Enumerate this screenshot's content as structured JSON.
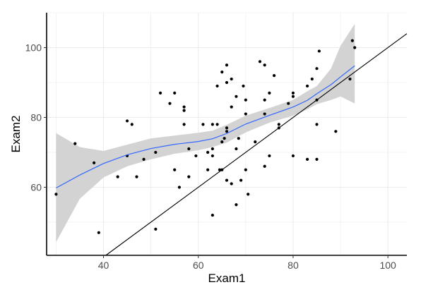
{
  "chart_data": {
    "type": "scatter",
    "title": "",
    "xlabel": "Exam1",
    "ylabel": "Exam2",
    "xlim": [
      28,
      104
    ],
    "ylim": [
      40.5,
      110
    ],
    "x_ticks": [
      40,
      60,
      80,
      100
    ],
    "y_ticks": [
      60,
      80,
      100
    ],
    "x_tick_labels": [
      "40",
      "60",
      "80",
      "100"
    ],
    "y_tick_labels": [
      "60",
      "80",
      "100"
    ],
    "grid": true,
    "legend": "none",
    "points": [
      [
        30,
        58
      ],
      [
        34,
        72.5
      ],
      [
        38,
        67
      ],
      [
        39,
        47
      ],
      [
        43,
        63
      ],
      [
        45,
        79
      ],
      [
        45,
        69
      ],
      [
        46,
        78
      ],
      [
        47,
        63
      ],
      [
        48.5,
        68
      ],
      [
        51,
        70
      ],
      [
        51,
        48
      ],
      [
        52,
        87
      ],
      [
        54,
        84
      ],
      [
        55,
        87
      ],
      [
        55,
        65
      ],
      [
        56,
        60
      ],
      [
        57,
        83
      ],
      [
        57,
        82
      ],
      [
        57,
        78
      ],
      [
        58,
        71
      ],
      [
        58,
        63
      ],
      [
        59.5,
        69
      ],
      [
        61,
        78
      ],
      [
        62,
        70
      ],
      [
        62,
        65
      ],
      [
        63,
        71
      ],
      [
        63,
        69
      ],
      [
        63,
        78
      ],
      [
        63,
        52
      ],
      [
        64,
        89
      ],
      [
        64,
        78
      ],
      [
        64.5,
        65
      ],
      [
        65,
        73
      ],
      [
        65,
        93
      ],
      [
        65,
        65
      ],
      [
        65.5,
        74
      ],
      [
        66,
        95
      ],
      [
        66,
        90
      ],
      [
        66,
        77
      ],
      [
        66,
        76
      ],
      [
        66,
        62
      ],
      [
        67,
        91
      ],
      [
        67,
        83
      ],
      [
        67,
        61
      ],
      [
        68,
        86
      ],
      [
        68,
        71
      ],
      [
        68,
        55
      ],
      [
        68.5,
        74
      ],
      [
        69,
        62
      ],
      [
        69.5,
        89
      ],
      [
        70,
        85
      ],
      [
        70,
        81
      ],
      [
        70,
        65
      ],
      [
        70.5,
        58
      ],
      [
        72,
        73
      ],
      [
        73,
        96
      ],
      [
        74,
        95
      ],
      [
        74,
        85
      ],
      [
        74,
        81
      ],
      [
        74,
        66
      ],
      [
        75,
        69
      ],
      [
        75,
        87
      ],
      [
        76,
        92
      ],
      [
        77,
        78
      ],
      [
        77,
        77
      ],
      [
        79,
        84
      ],
      [
        80,
        87
      ],
      [
        80,
        86
      ],
      [
        80,
        69
      ],
      [
        83,
        68
      ],
      [
        83,
        89
      ],
      [
        84,
        91
      ],
      [
        85,
        94
      ],
      [
        85,
        85
      ],
      [
        85,
        78
      ],
      [
        85,
        68
      ],
      [
        85.5,
        99
      ],
      [
        89,
        76
      ],
      [
        92,
        91
      ],
      [
        92.5,
        102
      ],
      [
        93,
        100
      ]
    ],
    "smooth_fit": {
      "method": "loess",
      "color": "#3366ff",
      "x": [
        30,
        35,
        40,
        45,
        50,
        55,
        60,
        63,
        66,
        70,
        75,
        80,
        83,
        85,
        88,
        90,
        93
      ],
      "y": [
        59.8,
        63.5,
        66.8,
        69.3,
        71.1,
        72.3,
        73.1,
        73.9,
        75.4,
        78.1,
        80.6,
        83.0,
        84.9,
        86.8,
        89.4,
        91.6,
        94.8
      ],
      "lower": [
        44.3,
        56.7,
        62.8,
        66.0,
        68.0,
        69.6,
        70.6,
        71.5,
        72.8,
        75.7,
        78.5,
        80.5,
        82.3,
        83.8,
        85.0,
        86.0,
        84.0
      ],
      "upper": [
        75.5,
        71.5,
        70.4,
        72.2,
        74.0,
        74.8,
        75.6,
        76.2,
        77.9,
        80.5,
        82.7,
        85.0,
        87.5,
        89.0,
        94.0,
        100.5,
        106.8
      ]
    },
    "reference_line": {
      "slope": 1,
      "intercept": 0,
      "color": "#000000"
    },
    "colors": {
      "points": "#000000",
      "ribbon": "#d3d3d3",
      "grid": "#ebebeb",
      "axis": "#000000"
    }
  }
}
